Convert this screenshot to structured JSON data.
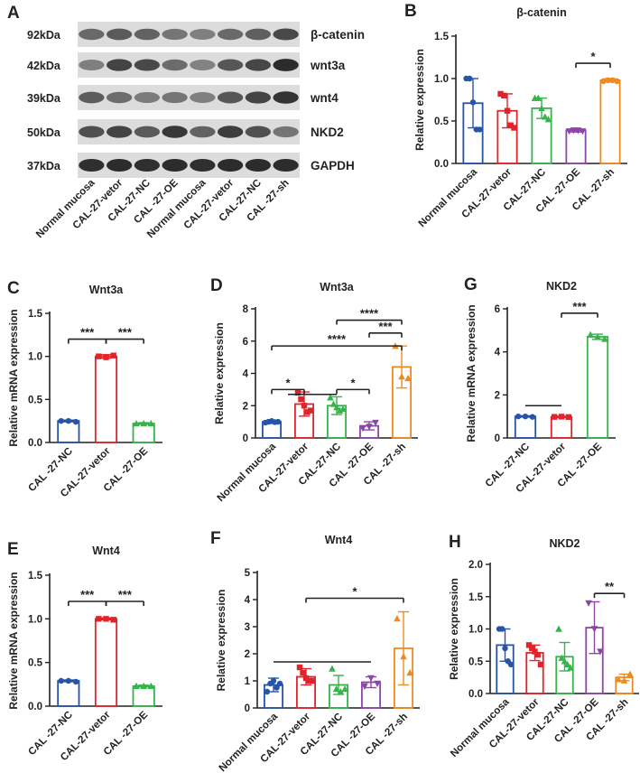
{
  "colors": {
    "blue": "#2554a8",
    "red": "#e0242c",
    "green": "#35b449",
    "purple": "#8c46a8",
    "orange": "#ef8a1f",
    "axis": "#222222"
  },
  "western_blot": {
    "label": "A",
    "markers": [
      "92kDa",
      "42kDa",
      "39kDa",
      "50kDa",
      "37kDa"
    ],
    "proteins": [
      "β-catenin",
      "wnt3a",
      "wnt4",
      "NKD2",
      "GAPDH"
    ],
    "lanes": [
      "Normal mucosa",
      "CAL-27-vetor",
      "CAL-27-NC",
      "CAL -27-OE",
      "Normal mucosa",
      "CAL-27-vetor",
      "CAL-27-NC",
      "CAL -27-sh"
    ]
  },
  "chart_data": [
    {
      "id": "B",
      "type": "bar",
      "title": "β-catenin",
      "ylabel": "Relative expression",
      "ylim": [
        0,
        1.5
      ],
      "yticks": [
        "0.0",
        "0.5",
        "1.0",
        "1.5"
      ],
      "ytickvals": [
        0,
        0.5,
        1.0,
        1.5
      ],
      "categories": [
        "Normal mucosa",
        "CAL-27-vetor",
        "CAL-27-NC",
        "CAL -27-OE",
        "CAL -27-sh"
      ],
      "colors": [
        "blue",
        "red",
        "green",
        "purple",
        "orange"
      ],
      "values": [
        0.71,
        0.62,
        0.65,
        0.39,
        0.98
      ],
      "errors": [
        0.29,
        0.2,
        0.12,
        0.02,
        0.02
      ],
      "points": [
        [
          1.0,
          1.0,
          0.72,
          0.4,
          0.4
        ],
        [
          0.82,
          0.8,
          0.62,
          0.45,
          0.42
        ],
        [
          0.77,
          0.77,
          0.65,
          0.55,
          0.52
        ],
        [
          0.38,
          0.39,
          0.39,
          0.38
        ],
        [
          0.97,
          0.98,
          0.98,
          0.97
        ]
      ],
      "markers": [
        "circle",
        "square",
        "triangle",
        "triangle-down",
        "circle"
      ],
      "brackets": [
        {
          "from": 3,
          "to": 4,
          "y": 1.18,
          "label": "*"
        }
      ]
    },
    {
      "id": "C",
      "type": "bar",
      "title": "Wnt3a",
      "ylabel": "Relative mRNA expression",
      "ylim": [
        0,
        1.5
      ],
      "yticks": [
        "0.0",
        "0.5",
        "1.0",
        "1.5"
      ],
      "ytickvals": [
        0,
        0.5,
        1.0,
        1.5
      ],
      "categories": [
        "CAL -27-NC",
        "CAL-27-vetor",
        "CAL -27-OE"
      ],
      "colors": [
        "blue",
        "red",
        "green"
      ],
      "values": [
        0.25,
        1.0,
        0.22
      ],
      "errors": [
        0.01,
        0.02,
        0.01
      ],
      "points": [
        [
          0.25,
          0.25,
          0.24
        ],
        [
          1.0,
          0.99,
          1.01
        ],
        [
          0.22,
          0.22,
          0.22
        ]
      ],
      "markers": [
        "circle",
        "square",
        "triangle"
      ],
      "brackets": [
        {
          "from": 0,
          "to": 1,
          "y": 1.2,
          "label": "***"
        },
        {
          "from": 1,
          "to": 2,
          "y": 1.2,
          "label": "***"
        }
      ]
    },
    {
      "id": "D",
      "type": "bar",
      "title": "Wnt3a",
      "ylabel": "Relative expression",
      "ylim": [
        0,
        8
      ],
      "yticks": [
        "0",
        "2",
        "4",
        "6",
        "8"
      ],
      "ytickvals": [
        0,
        2,
        4,
        6,
        8
      ],
      "categories": [
        "Normal mucosa",
        "CAL-27-vetor",
        "CAL-27-NC",
        "CAL -27-OE",
        "CAL -27-sh"
      ],
      "colors": [
        "blue",
        "red",
        "green",
        "purple",
        "orange"
      ],
      "values": [
        1.0,
        2.1,
        2.0,
        0.75,
        4.4
      ],
      "errors": [
        0.1,
        0.75,
        0.55,
        0.25,
        1.3
      ],
      "points": [
        [
          0.95,
          1.0,
          1.05,
          0.98,
          1.0
        ],
        [
          2.8,
          2.4,
          2.0,
          1.6,
          1.7
        ],
        [
          2.5,
          2.1,
          1.9,
          1.7,
          1.8
        ],
        [
          0.6,
          0.7,
          0.95
        ],
        [
          5.7,
          3.8,
          3.7
        ]
      ],
      "markers": [
        "circle",
        "square",
        "triangle",
        "triangle-down",
        "triangle"
      ],
      "brackets": [
        {
          "from": 0,
          "to": 1,
          "y": 3.0,
          "label": "*"
        },
        {
          "from": 0.5,
          "to": 2,
          "y": 2.7,
          "label": ""
        },
        {
          "from": 2,
          "to": 3,
          "y": 3.0,
          "label": "*"
        },
        {
          "from": 0,
          "to": 4,
          "y": 5.7,
          "label": "****"
        },
        {
          "from": 2,
          "to": 4,
          "y": 7.3,
          "label": "****"
        },
        {
          "from": 3,
          "to": 4,
          "y": 6.5,
          "label": "***"
        }
      ]
    },
    {
      "id": "G",
      "type": "bar",
      "title": "NKD2",
      "ylabel": "Relative mRNA expression",
      "ylim": [
        0,
        6
      ],
      "yticks": [
        "0",
        "2",
        "4",
        "6"
      ],
      "ytickvals": [
        0,
        2,
        4,
        6
      ],
      "categories": [
        "CAL -27-NC",
        "CAL-27-vetor",
        "CAL -27-OE"
      ],
      "colors": [
        "blue",
        "red",
        "green"
      ],
      "values": [
        1.0,
        0.98,
        4.7
      ],
      "errors": [
        0.03,
        0.03,
        0.12
      ],
      "points": [
        [
          1.0,
          1.0,
          0.98
        ],
        [
          0.98,
          0.99,
          0.97
        ],
        [
          4.8,
          4.7,
          4.6
        ]
      ],
      "markers": [
        "circle",
        "square",
        "triangle"
      ],
      "brackets": [
        {
          "from": 0,
          "to": 1,
          "y": 1.5,
          "label": ""
        },
        {
          "from": 1,
          "to": 2,
          "y": 5.8,
          "label": "***"
        }
      ]
    },
    {
      "id": "E",
      "type": "bar",
      "title": "Wnt4",
      "ylabel": "Relative mRNA expression",
      "ylim": [
        0,
        1.5
      ],
      "yticks": [
        "0.0",
        "0.5",
        "1.0",
        "1.5"
      ],
      "ytickvals": [
        0,
        0.5,
        1.0,
        1.5
      ],
      "categories": [
        "CAL -27-NC",
        "CAL-27-vetor",
        "CAL -27-OE"
      ],
      "colors": [
        "blue",
        "red",
        "green"
      ],
      "values": [
        0.29,
        1.0,
        0.23
      ],
      "errors": [
        0.01,
        0.01,
        0.01
      ],
      "points": [
        [
          0.29,
          0.29,
          0.28
        ],
        [
          1.0,
          1.0,
          0.99
        ],
        [
          0.23,
          0.23,
          0.23
        ]
      ],
      "markers": [
        "circle",
        "square",
        "triangle"
      ],
      "brackets": [
        {
          "from": 0,
          "to": 1,
          "y": 1.2,
          "label": "***"
        },
        {
          "from": 1,
          "to": 2,
          "y": 1.2,
          "label": "***"
        }
      ]
    },
    {
      "id": "F",
      "type": "bar",
      "title": "Wnt4",
      "ylabel": "Relative expression",
      "ylim": [
        0,
        5
      ],
      "yticks": [
        "0",
        "1",
        "2",
        "3",
        "4",
        "5"
      ],
      "ytickvals": [
        0,
        1,
        2,
        3,
        4,
        5
      ],
      "categories": [
        "Normal mucosa",
        "CAL-27-vetor",
        "CAL-27-NC",
        "CAL -27-OE",
        "CAL -27-sh"
      ],
      "colors": [
        "blue",
        "red",
        "green",
        "purple",
        "orange"
      ],
      "values": [
        0.85,
        1.15,
        0.85,
        0.95,
        2.2
      ],
      "errors": [
        0.25,
        0.3,
        0.35,
        0.2,
        1.35
      ],
      "points": [
        [
          0.6,
          0.9,
          1.0,
          0.75,
          0.9
        ],
        [
          1.5,
          1.3,
          1.1,
          1.0,
          1.0
        ],
        [
          1.45,
          0.7,
          0.6,
          0.7
        ],
        [
          0.8,
          1.1,
          0.9
        ],
        [
          3.3,
          1.9,
          1.3
        ]
      ],
      "markers": [
        "circle",
        "square",
        "triangle",
        "triangle-down",
        "triangle"
      ],
      "brackets": [
        {
          "from": 0,
          "to": 3,
          "y": 1.7,
          "label": ""
        },
        {
          "from": 1,
          "to": 4,
          "y": 4.05,
          "label": "*"
        }
      ]
    },
    {
      "id": "H",
      "type": "bar",
      "title": "NKD2",
      "ylabel": "Relative expression",
      "ylim": [
        0,
        2
      ],
      "yticks": [
        "0.0",
        "0.5",
        "1.0",
        "1.5",
        "2.0"
      ],
      "ytickvals": [
        0,
        0.5,
        1.0,
        1.5,
        2.0
      ],
      "categories": [
        "Normal mucosa",
        "CAL-27-vetor",
        "CAL-27-NC",
        "CAL -27-OE",
        "CAL -27-sh"
      ],
      "colors": [
        "blue",
        "red",
        "green",
        "purple",
        "orange"
      ],
      "values": [
        0.75,
        0.63,
        0.57,
        1.02,
        0.25
      ],
      "errors": [
        0.25,
        0.12,
        0.22,
        0.4,
        0.05
      ],
      "points": [
        [
          1.0,
          1.0,
          0.7,
          0.5,
          0.45
        ],
        [
          0.75,
          0.7,
          0.65,
          0.6,
          0.45
        ],
        [
          1.0,
          0.55,
          0.5,
          0.45,
          0.4
        ],
        [
          1.4,
          1.0,
          0.65
        ],
        [
          0.22,
          0.2,
          0.3
        ]
      ],
      "markers": [
        "circle",
        "square",
        "triangle",
        "triangle-down",
        "triangle"
      ],
      "brackets": [
        {
          "from": 3,
          "to": 4,
          "y": 1.55,
          "label": "**"
        }
      ]
    }
  ]
}
